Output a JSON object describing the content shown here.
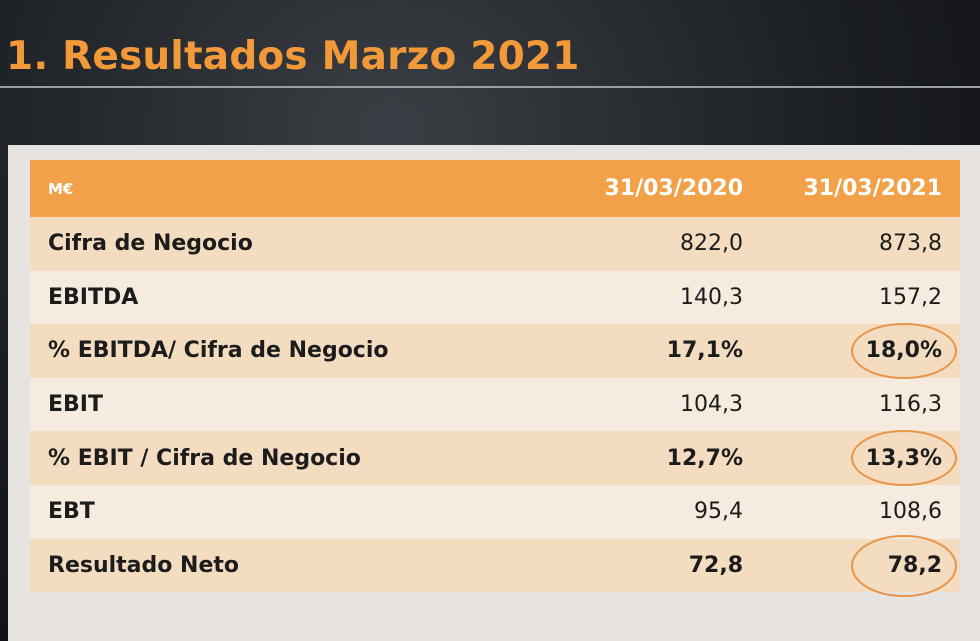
{
  "header": {
    "title": "1. Resultados Marzo 2021"
  },
  "table": {
    "columns": [
      "M€",
      "31/03/2020",
      "31/03/2021"
    ],
    "rows": [
      [
        "Cifra de Negocio",
        "822,0",
        "873,8"
      ],
      [
        "EBITDA",
        "140,3",
        "157,2"
      ],
      [
        "% EBITDA/ Cifra de Negocio",
        "17,1%",
        "18,0%"
      ],
      [
        "EBIT",
        "104,3",
        "116,3"
      ],
      [
        "% EBIT / Cifra de Negocio",
        "12,7%",
        "13,3%"
      ],
      [
        "EBT",
        "95,4",
        "108,6"
      ],
      [
        "Resultado Neto",
        "72,8",
        "78,2"
      ]
    ]
  }
}
